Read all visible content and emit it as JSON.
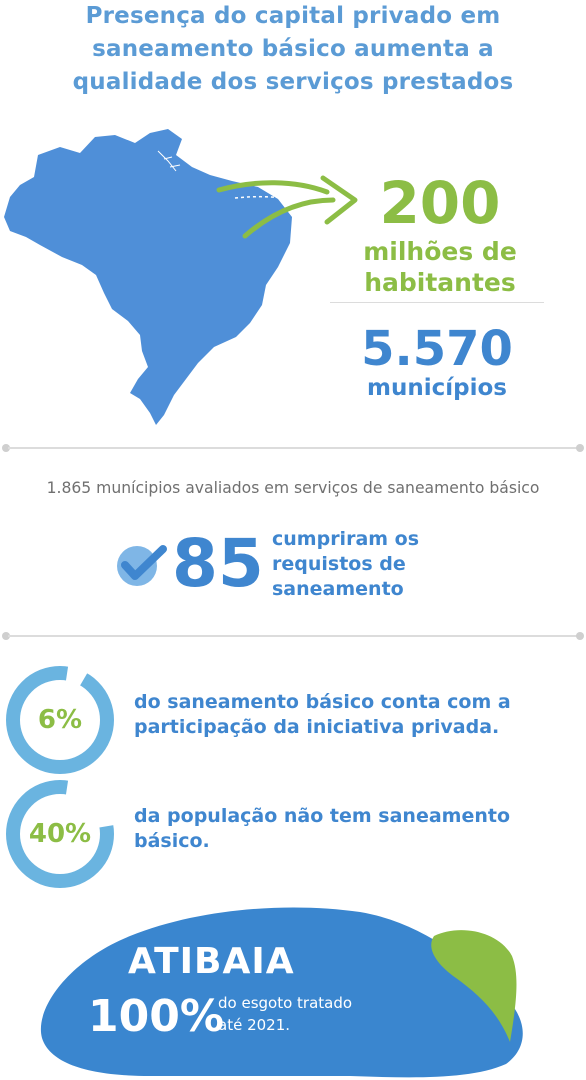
{
  "title": {
    "line1": "Presença do capital privado em",
    "line2": "saneamento básico aumenta a",
    "line3": "qualidade dos serviços prestados"
  },
  "population": {
    "value": "200",
    "label_line1": "milhões de",
    "label_line2": "habitantes"
  },
  "municipalities": {
    "value": "5.570",
    "label": "municípios"
  },
  "evaluated_text": "1.865 munícipios avaliados em serviços de saneamento básico",
  "compliant": {
    "value": "85",
    "line1": "cumpriram os",
    "line2": "requistos de",
    "line3": "saneamento"
  },
  "private_participation": {
    "percent": "6%",
    "fraction": 0.06,
    "line1": "do saneamento básico conta com a",
    "line2": "participação da iniciativa privada."
  },
  "no_sanitation": {
    "percent": "40%",
    "fraction": 0.4,
    "line1": "da população não tem saneamento",
    "line2": "básico."
  },
  "atibaia": {
    "city": "ATIBAIA",
    "percent": "100%",
    "line1": "do esgoto tratado",
    "line2": "até 2021."
  },
  "colors": {
    "blue": "#3f86cf",
    "light_blue": "#5b9bd5",
    "ring_blue": "#6ab4e0",
    "green": "#8cbd45"
  },
  "icons": {
    "map": "brazil-map-icon",
    "arrow": "curved-arrow-icon",
    "check": "check-badge-icon",
    "drop": "leaf-drop-icon"
  }
}
